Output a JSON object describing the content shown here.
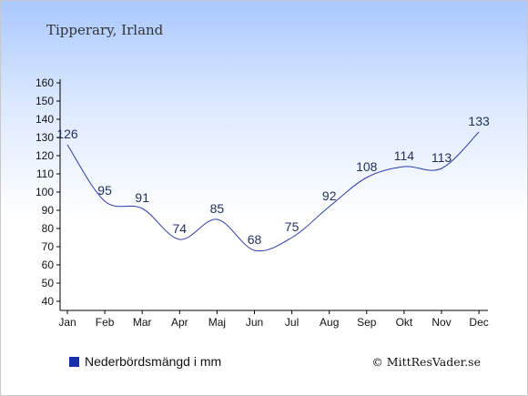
{
  "header": {
    "place": "Tipperary, Irland"
  },
  "legend": {
    "label": "Nederbördsmängd i mm",
    "swatch_color": "#1a2fa8"
  },
  "credit": "© MittResVader.se",
  "colors": {
    "line": "#2a3aa8",
    "label": "#1f2f5a"
  },
  "chart_data": {
    "type": "line",
    "categories": [
      "Jan",
      "Feb",
      "Mar",
      "Apr",
      "Maj",
      "Jun",
      "Jul",
      "Aug",
      "Sep",
      "Okt",
      "Nov",
      "Dec"
    ],
    "series": [
      {
        "name": "Nederbördsmängd i mm",
        "values": [
          126,
          95,
          91,
          74,
          85,
          68,
          75,
          92,
          108,
          114,
          113,
          133
        ]
      }
    ],
    "ylim": [
      40,
      160
    ],
    "yticks": [
      40,
      50,
      60,
      70,
      80,
      90,
      100,
      110,
      120,
      130,
      140,
      150,
      160
    ],
    "grid": false,
    "title": "",
    "xlabel": "",
    "ylabel": ""
  }
}
